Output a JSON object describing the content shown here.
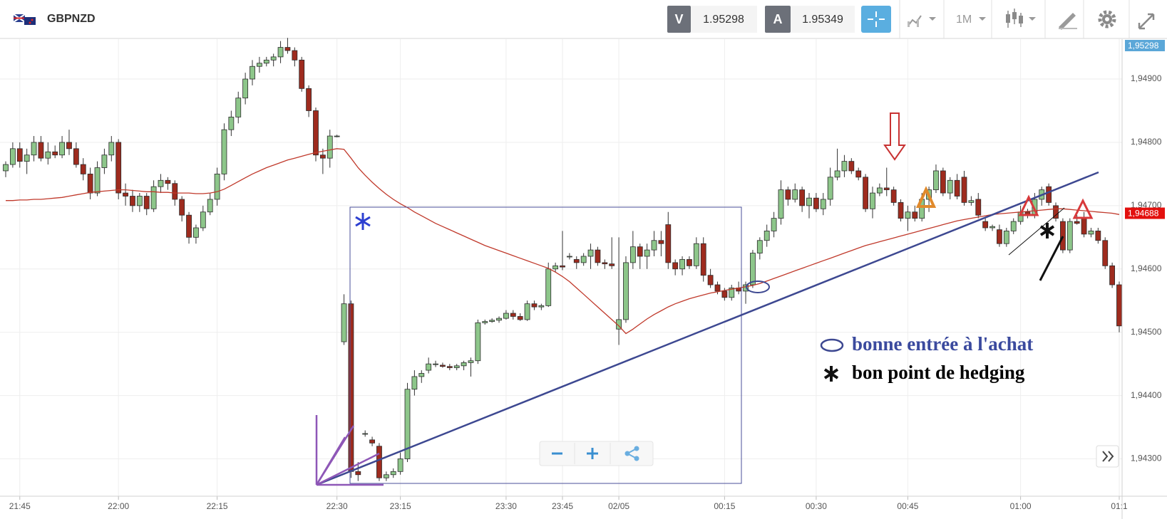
{
  "toolbar": {
    "symbol": "GBPNZD",
    "bid_label": "V",
    "bid": 1.95298,
    "ask_label": "A",
    "ask": 1.95349,
    "timeframe": "1M"
  },
  "legend": {
    "entry_point": "bonne entrée à l'achat",
    "hedging_point": "bon point de hedging"
  },
  "chart_data": {
    "type": "candlestick",
    "up_color": "#8dc68a",
    "down_color": "#9e2b1e",
    "grid": true,
    "ylim": [
      1.94241,
      1.94963
    ],
    "yticks": [
      {
        "value": 1.943,
        "label": "1,94300"
      },
      {
        "value": 1.944,
        "label": "1,94400"
      },
      {
        "value": 1.945,
        "label": "1,94500"
      },
      {
        "value": 1.946,
        "label": "1,94600"
      },
      {
        "value": 1.947,
        "label": "1,94700"
      },
      {
        "value": 1.948,
        "label": "1,94800"
      },
      {
        "value": 1.949,
        "label": "1,94900"
      }
    ],
    "price_tags": [
      {
        "value": 1.95298,
        "label": "1,95298",
        "color": "#5ba7d8"
      },
      {
        "value": 1.94688,
        "label": "1,94688",
        "color": "#e3100e"
      }
    ],
    "categories": [
      null,
      null,
      "21:45",
      null,
      null,
      null,
      null,
      null,
      null,
      null,
      null,
      null,
      null,
      null,
      null,
      null,
      "22:00",
      null,
      null,
      null,
      null,
      null,
      null,
      null,
      null,
      null,
      null,
      null,
      null,
      null,
      "22:15",
      null,
      null,
      null,
      null,
      null,
      null,
      null,
      null,
      null,
      null,
      null,
      null,
      null,
      null,
      null,
      null,
      "22:30",
      null,
      null,
      null,
      null,
      null,
      null,
      null,
      null,
      "23:15",
      null,
      null,
      null,
      null,
      null,
      null,
      null,
      null,
      null,
      null,
      null,
      null,
      null,
      null,
      "23:30",
      null,
      null,
      null,
      null,
      null,
      null,
      null,
      "23:45",
      null,
      null,
      null,
      null,
      null,
      null,
      null,
      "02/05",
      null,
      null,
      null,
      null,
      null,
      null,
      null,
      null,
      null,
      null,
      null,
      null,
      null,
      null,
      "00:15",
      null,
      null,
      null,
      null,
      null,
      null,
      null,
      null,
      null,
      null,
      null,
      null,
      "00:30",
      null,
      null,
      null,
      null,
      null,
      null,
      null,
      null,
      null,
      null,
      null,
      null,
      "00:45",
      null,
      null,
      null,
      null,
      null,
      null,
      null,
      null,
      null,
      null,
      null,
      null,
      null,
      null,
      null,
      "01:00",
      null,
      null,
      null,
      null,
      null,
      null,
      null,
      null,
      null,
      null,
      null,
      null,
      null,
      "01:1"
    ],
    "open": [
      1.94755,
      1.94765,
      1.9479,
      1.9477,
      1.9478,
      1.948,
      1.94775,
      1.94785,
      1.9478,
      1.948,
      1.9479,
      1.94765,
      1.9475,
      1.9472,
      1.9476,
      1.9478,
      1.948,
      1.9472,
      1.94715,
      1.947,
      1.94715,
      1.94695,
      1.9473,
      1.9474,
      1.94735,
      1.9471,
      1.94685,
      1.9465,
      1.94665,
      1.9469,
      1.9471,
      1.9475,
      1.9482,
      1.9484,
      1.9487,
      1.949,
      1.9492,
      1.94925,
      1.9493,
      1.94935,
      1.9495,
      1.94945,
      1.9493,
      1.94885,
      1.9485,
      1.9478,
      1.94775,
      1.9481,
      1.94485,
      1.94545,
      1.9428,
      1.9434,
      1.9433,
      1.9432,
      1.9427,
      1.94275,
      1.9428,
      1.943,
      1.9441,
      1.9443,
      1.9444,
      1.9445,
      1.94448,
      1.94446,
      1.94444,
      1.94447,
      1.94452,
      1.94455,
      1.94515,
      1.94517,
      1.94519,
      1.94522,
      1.9453,
      1.94525,
      1.9452,
      1.94545,
      1.9454,
      1.94542,
      1.946,
      1.94605,
      1.9462,
      1.94615,
      1.9461,
      1.9462,
      1.9463,
      1.9461,
      1.94608,
      1.94505,
      1.9452,
      1.9461,
      1.94635,
      1.9462,
      1.9463,
      1.94645,
      1.9467,
      1.9461,
      1.946,
      1.94615,
      1.94605,
      1.9464,
      1.9459,
      1.94575,
      1.94565,
      1.94555,
      1.9457,
      1.94565,
      1.94575,
      1.94625,
      1.94645,
      1.9466,
      1.9468,
      1.94725,
      1.9471,
      1.94725,
      1.947,
      1.94712,
      1.94695,
      1.9471,
      1.94745,
      1.94755,
      1.9477,
      1.94755,
      1.94745,
      1.94695,
      1.9472,
      1.94728,
      1.94725,
      1.94705,
      1.9468,
      1.9469,
      1.9468,
      1.9471,
      1.94725,
      1.94755,
      1.9472,
      1.9474,
      1.94745,
      1.94705,
      1.9471,
      1.94675,
      1.94665,
      1.94662,
      1.9464,
      1.9466,
      1.94675,
      1.9469,
      1.94685,
      1.9471,
      1.9473,
      1.947,
      1.94675,
      1.9463,
      1.94675,
      1.9468,
      1.94655,
      1.9466,
      1.94645,
      1.94605,
      1.94575
    ],
    "high": [
      1.9477,
      1.948,
      1.948,
      1.9479,
      1.9481,
      1.9481,
      1.948,
      1.94795,
      1.9481,
      1.9482,
      1.948,
      1.94775,
      1.9476,
      1.9477,
      1.9479,
      1.9481,
      1.94805,
      1.94735,
      1.94725,
      1.9472,
      1.9472,
      1.9474,
      1.9475,
      1.94745,
      1.9474,
      1.94715,
      1.9469,
      1.9467,
      1.947,
      1.9472,
      1.9476,
      1.9483,
      1.9485,
      1.9488,
      1.9491,
      1.9493,
      1.94935,
      1.94935,
      1.9494,
      1.9496,
      1.94965,
      1.9495,
      1.94935,
      1.9489,
      1.94855,
      1.9479,
      1.9482,
      1.94812,
      1.9456,
      1.9455,
      1.94295,
      1.94345,
      1.94335,
      1.94325,
      1.9428,
      1.94285,
      1.9431,
      1.9442,
      1.9444,
      1.9444,
      1.9446,
      1.94455,
      1.94452,
      1.9445,
      1.9445,
      1.94455,
      1.9446,
      1.9452,
      1.9452,
      1.94522,
      1.94525,
      1.94535,
      1.94535,
      1.9453,
      1.9455,
      1.9455,
      1.94545,
      1.9461,
      1.9461,
      1.9466,
      1.94625,
      1.9462,
      1.94625,
      1.9464,
      1.94635,
      1.94615,
      1.9465,
      1.9465,
      1.9462,
      1.9466,
      1.9464,
      1.9464,
      1.9466,
      1.9466,
      1.9469,
      1.94615,
      1.9462,
      1.9462,
      1.9465,
      1.9465,
      1.946,
      1.9458,
      1.9457,
      1.94575,
      1.9458,
      1.9458,
      1.9463,
      1.9465,
      1.9467,
      1.9469,
      1.9474,
      1.9473,
      1.94735,
      1.9473,
      1.9472,
      1.9472,
      1.9472,
      1.9476,
      1.9479,
      1.9478,
      1.94775,
      1.9476,
      1.9475,
      1.9473,
      1.94735,
      1.9476,
      1.9473,
      1.9471,
      1.947,
      1.947,
      1.9472,
      1.9473,
      1.94765,
      1.9476,
      1.94745,
      1.9475,
      1.94755,
      1.94715,
      1.9472,
      1.9468,
      1.9467,
      1.9467,
      1.94665,
      1.9468,
      1.947,
      1.94695,
      1.9472,
      1.9473,
      1.94735,
      1.94705,
      1.9468,
      1.9468,
      1.94685,
      1.9469,
      1.94665,
      1.94665,
      1.9465,
      1.9461,
      1.9458
    ],
    "low": [
      1.94745,
      1.9476,
      1.9476,
      1.9475,
      1.9477,
      1.9477,
      1.94765,
      1.94775,
      1.94775,
      1.9478,
      1.9476,
      1.9474,
      1.9471,
      1.94715,
      1.9475,
      1.9477,
      1.9471,
      1.947,
      1.9469,
      1.9469,
      1.94685,
      1.9469,
      1.9472,
      1.94725,
      1.947,
      1.94675,
      1.9464,
      1.9464,
      1.9466,
      1.94685,
      1.947,
      1.9474,
      1.9481,
      1.9483,
      1.9486,
      1.9489,
      1.9491,
      1.9492,
      1.9492,
      1.94925,
      1.9494,
      1.9492,
      1.9488,
      1.9484,
      1.9477,
      1.9475,
      1.9476,
      1.94808,
      1.9448,
      1.9427,
      1.94265,
      1.94335,
      1.9432,
      1.94265,
      1.94265,
      1.9427,
      1.94275,
      1.94295,
      1.944,
      1.9442,
      1.94435,
      1.94445,
      1.94444,
      1.9444,
      1.9444,
      1.9444,
      1.9443,
      1.9445,
      1.94512,
      1.94515,
      1.94515,
      1.9452,
      1.9452,
      1.94518,
      1.94518,
      1.94535,
      1.94535,
      1.9454,
      1.94595,
      1.94598,
      1.94615,
      1.946,
      1.94605,
      1.946,
      1.94605,
      1.946,
      1.946,
      1.9448,
      1.94515,
      1.946,
      1.946,
      1.946,
      1.9462,
      1.9462,
      1.946,
      1.9459,
      1.9459,
      1.946,
      1.946,
      1.9458,
      1.9457,
      1.9456,
      1.9455,
      1.9455,
      1.9456,
      1.94545,
      1.9457,
      1.94615,
      1.94635,
      1.9465,
      1.9467,
      1.947,
      1.94705,
      1.9469,
      1.9468,
      1.9469,
      1.94685,
      1.947,
      1.9474,
      1.94745,
      1.9475,
      1.9474,
      1.9469,
      1.9468,
      1.94715,
      1.94715,
      1.947,
      1.94675,
      1.9466,
      1.94675,
      1.94675,
      1.9469,
      1.9472,
      1.94715,
      1.9471,
      1.9471,
      1.947,
      1.947,
      1.9468,
      1.9466,
      1.9466,
      1.94635,
      1.94635,
      1.94655,
      1.9467,
      1.9468,
      1.9468,
      1.947,
      1.947,
      1.94675,
      1.94625,
      1.94625,
      1.9467,
      1.9465,
      1.9465,
      1.9464,
      1.946,
      1.9457,
      1.945
    ],
    "close": [
      1.94765,
      1.9479,
      1.9477,
      1.9478,
      1.948,
      1.94775,
      1.94785,
      1.9478,
      1.948,
      1.9479,
      1.94765,
      1.9475,
      1.9472,
      1.9476,
      1.9478,
      1.948,
      1.9472,
      1.94715,
      1.947,
      1.94715,
      1.94695,
      1.9473,
      1.9474,
      1.94735,
      1.9471,
      1.94685,
      1.9465,
      1.94665,
      1.9469,
      1.9471,
      1.9475,
      1.9482,
      1.9484,
      1.9487,
      1.949,
      1.9492,
      1.94925,
      1.9493,
      1.94935,
      1.9495,
      1.94945,
      1.9493,
      1.94885,
      1.9485,
      1.9478,
      1.94775,
      1.9481,
      1.9481,
      1.94545,
      1.9428,
      1.94275,
      1.9434,
      1.94325,
      1.9427,
      1.94275,
      1.9428,
      1.943,
      1.9441,
      1.9443,
      1.94435,
      1.9445,
      1.9445,
      1.94446,
      1.94444,
      1.94447,
      1.94452,
      1.94455,
      1.94515,
      1.94517,
      1.94519,
      1.94522,
      1.9453,
      1.94525,
      1.9452,
      1.94545,
      1.9454,
      1.94542,
      1.946,
      1.94605,
      1.94603,
      1.9462,
      1.9461,
      1.9462,
      1.9463,
      1.9461,
      1.94608,
      1.94605,
      1.9452,
      1.9461,
      1.94635,
      1.9462,
      1.9463,
      1.94645,
      1.9464,
      1.9461,
      1.946,
      1.94615,
      1.94605,
      1.9464,
      1.9459,
      1.94575,
      1.94565,
      1.94555,
      1.9457,
      1.94565,
      1.94575,
      1.94625,
      1.94645,
      1.9466,
      1.9468,
      1.94725,
      1.9471,
      1.94725,
      1.947,
      1.94712,
      1.94695,
      1.9471,
      1.94745,
      1.94755,
      1.9477,
      1.94755,
      1.94745,
      1.94695,
      1.9472,
      1.94728,
      1.94725,
      1.94705,
      1.9468,
      1.9469,
      1.9468,
      1.9471,
      1.94725,
      1.94755,
      1.9472,
      1.9474,
      1.94715,
      1.94705,
      1.94708,
      1.94685,
      1.94665,
      1.94667,
      1.9464,
      1.9466,
      1.94675,
      1.9469,
      1.94685,
      1.9471,
      1.94725,
      1.94705,
      1.9468,
      1.9463,
      1.94675,
      1.94672,
      1.94655,
      1.9466,
      1.94645,
      1.94605,
      1.94575,
      1.9451
    ],
    "moving_average": {
      "color": "#c0392b",
      "values": [
        1.94708,
        1.94708,
        1.94709,
        1.94709,
        1.9471,
        1.9471,
        1.94711,
        1.94712,
        1.94713,
        1.94715,
        1.94717,
        1.94719,
        1.94721,
        1.94722,
        1.94723,
        1.94724,
        1.94725,
        1.94725,
        1.94724,
        1.94723,
        1.94722,
        1.94722,
        1.94721,
        1.94721,
        1.9472,
        1.9472,
        1.9472,
        1.94719,
        1.94719,
        1.9472,
        1.94722,
        1.94726,
        1.94732,
        1.94738,
        1.94744,
        1.9475,
        1.94755,
        1.9476,
        1.94764,
        1.94768,
        1.94772,
        1.94775,
        1.94778,
        1.94781,
        1.94784,
        1.94786,
        1.94788,
        1.9479,
        1.94789,
        1.94775,
        1.9476,
        1.94748,
        1.94737,
        1.94727,
        1.94718,
        1.9471,
        1.94703,
        1.94697,
        1.9469,
        1.94684,
        1.94678,
        1.94672,
        1.94667,
        1.94662,
        1.94657,
        1.94652,
        1.94647,
        1.94642,
        1.94637,
        1.94633,
        1.94629,
        1.94625,
        1.94621,
        1.94617,
        1.94613,
        1.94609,
        1.94605,
        1.94601,
        1.94595,
        1.94588,
        1.9458,
        1.9457,
        1.9456,
        1.9455,
        1.9454,
        1.9453,
        1.9452,
        1.9451,
        1.94498,
        1.94505,
        1.94513,
        1.94521,
        1.94528,
        1.94534,
        1.9454,
        1.94545,
        1.94549,
        1.94553,
        1.94556,
        1.94559,
        1.94562,
        1.94564,
        1.94566,
        1.94568,
        1.9457,
        1.94572,
        1.94574,
        1.94577,
        1.94581,
        1.94585,
        1.94589,
        1.94593,
        1.94597,
        1.94601,
        1.94605,
        1.94609,
        1.94613,
        1.94617,
        1.94621,
        1.94625,
        1.94629,
        1.94633,
        1.94637,
        1.9464,
        1.94643,
        1.94646,
        1.94649,
        1.94652,
        1.94655,
        1.94658,
        1.94661,
        1.94664,
        1.94667,
        1.9467,
        1.94673,
        1.94676,
        1.94678,
        1.9468,
        1.94682,
        1.94684,
        1.94686,
        1.94687,
        1.94688,
        1.94689,
        1.9469,
        1.94691,
        1.94692,
        1.94693,
        1.94694,
        1.94695,
        1.94695,
        1.94694,
        1.94693,
        1.94692,
        1.94691,
        1.9469,
        1.94689,
        1.94688,
        1.94686
      ]
    }
  }
}
